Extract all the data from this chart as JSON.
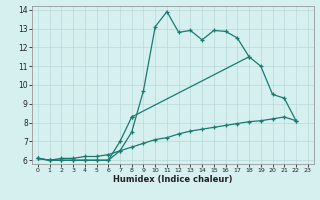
{
  "title": "",
  "xlabel": "Humidex (Indice chaleur)",
  "bg_color": "#d6f0f0",
  "line_color": "#1a7a6e",
  "grid_color": "#b8d8d8",
  "xlim": [
    -0.5,
    23.5
  ],
  "ylim": [
    5.8,
    14.2
  ],
  "xticks": [
    0,
    1,
    2,
    3,
    4,
    5,
    6,
    7,
    8,
    9,
    10,
    11,
    12,
    13,
    14,
    15,
    16,
    17,
    18,
    19,
    20,
    21,
    22,
    23
  ],
  "yticks": [
    6,
    7,
    8,
    9,
    10,
    11,
    12,
    13,
    14
  ],
  "line1_x": [
    0,
    1,
    2,
    3,
    4,
    5,
    6,
    7,
    8,
    9,
    10,
    11,
    12,
    13,
    14,
    15,
    16,
    17,
    18
  ],
  "line1_y": [
    6.1,
    6.0,
    6.0,
    6.0,
    6.0,
    6.0,
    6.0,
    6.5,
    7.5,
    9.7,
    13.1,
    13.9,
    12.8,
    12.9,
    12.4,
    12.9,
    12.85,
    12.5,
    11.5
  ],
  "line2a_x": [
    0,
    1,
    2,
    3,
    4,
    5,
    6,
    7,
    8
  ],
  "line2a_y": [
    6.1,
    6.0,
    6.0,
    6.0,
    6.0,
    6.0,
    6.0,
    7.0,
    8.3
  ],
  "line2b_x": [
    8,
    18,
    19,
    20,
    21,
    22
  ],
  "line2b_y": [
    8.3,
    11.5,
    11.0,
    9.5,
    9.3,
    8.1
  ],
  "line3_x": [
    0,
    1,
    2,
    3,
    4,
    5,
    6,
    7,
    8,
    9,
    10,
    11,
    12,
    13,
    14,
    15,
    16,
    17,
    18,
    19,
    20,
    21,
    22
  ],
  "line3_y": [
    6.1,
    6.0,
    6.1,
    6.1,
    6.2,
    6.2,
    6.3,
    6.5,
    6.7,
    6.9,
    7.1,
    7.2,
    7.4,
    7.55,
    7.65,
    7.75,
    7.85,
    7.95,
    8.05,
    8.1,
    8.2,
    8.3,
    8.1
  ]
}
